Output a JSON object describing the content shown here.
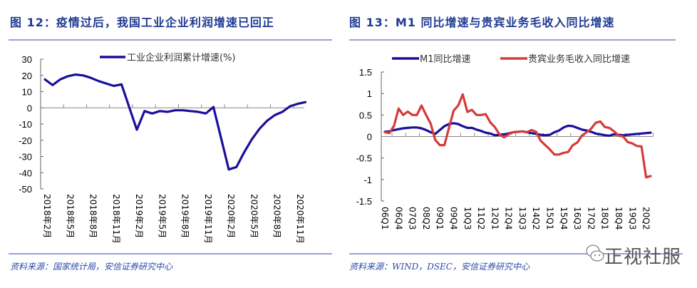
{
  "left": {
    "title": "图 12：疫情过后，我国工业企业利润增速已回正",
    "source": "资料来源：国家统计局，安信证券研究中心"
  },
  "right": {
    "title": "图 13：M1 同比增速与贵宾业务毛收入同比增速",
    "source": "资料来源：WIND，DSEC，安信证券研究中心"
  },
  "watermark": "正视社服",
  "colors": {
    "blue": "#1a0f9a",
    "red": "#d63a3a",
    "title": "#1f3a93",
    "rule": "#9aa0d8"
  },
  "chart_data": [
    {
      "type": "line",
      "title": "图 12：疫情过后，我国工业企业利润增速已回正",
      "ylim": [
        -50,
        30
      ],
      "yticks": [
        "30",
        "20",
        "10",
        "0",
        "-10",
        "-20",
        "-30",
        "-40",
        "-50"
      ],
      "xtick_labels": [
        "2018年2月",
        "2018年5月",
        "2018年8月",
        "2018年11月",
        "2019年2月",
        "2019年5月",
        "2019年8月",
        "2019年11月",
        "2020年2月",
        "2020年5月",
        "2020年8月",
        "2020年11月"
      ],
      "legend": "top",
      "series": [
        {
          "name": "工业企业利润累计增速(%)",
          "color": "#1a0f9a",
          "x": [
            "2018-02",
            "2018-03",
            "2018-04",
            "2018-05",
            "2018-06",
            "2018-07",
            "2018-08",
            "2018-09",
            "2018-10",
            "2018-11",
            "2018-12",
            "2019-02",
            "2019-03",
            "2019-04",
            "2019-05",
            "2019-06",
            "2019-07",
            "2019-08",
            "2019-09",
            "2019-10",
            "2019-11",
            "2019-12",
            "2020-02",
            "2020-03",
            "2020-04",
            "2020-05",
            "2020-06",
            "2020-07",
            "2020-08",
            "2020-09",
            "2020-10",
            "2020-11",
            "2020-12"
          ],
          "values": [
            17.5,
            14.0,
            17.5,
            19.5,
            20.5,
            20.0,
            18.5,
            16.5,
            15.0,
            13.5,
            14.5,
            -13.5,
            -2.0,
            -3.5,
            -2.0,
            -2.5,
            -1.5,
            -1.5,
            -2.0,
            -2.5,
            -3.5,
            0.5,
            -38.0,
            -36.5,
            -27.5,
            -19.5,
            -13.0,
            -8.0,
            -4.5,
            -2.5,
            1.0,
            2.5,
            3.5
          ]
        }
      ]
    },
    {
      "type": "line",
      "title": "图 13：M1 同比增速与贵宾业务毛收入同比增速",
      "ylim": [
        -1.5,
        1.5
      ],
      "yticks": [
        "1.5",
        "1",
        "0.5",
        "0",
        "-0.5",
        "-1",
        "-1.5"
      ],
      "xtick_labels": [
        "06Q1",
        "06Q4",
        "07Q3",
        "08Q2",
        "09Q1",
        "09Q4",
        "10Q3",
        "11Q2",
        "12Q1",
        "12Q4",
        "13Q3",
        "14Q2",
        "15Q1",
        "15Q4",
        "16Q3",
        "17Q2",
        "18Q1",
        "18Q4",
        "19Q3",
        "20Q2"
      ],
      "legend": "top",
      "series": [
        {
          "name": "M1同比增速",
          "color": "#1a0f9a",
          "values": [
            0.11,
            0.12,
            0.15,
            0.17,
            0.19,
            0.2,
            0.21,
            0.21,
            0.19,
            0.15,
            0.1,
            0.06,
            0.15,
            0.24,
            0.29,
            0.31,
            0.29,
            0.24,
            0.2,
            0.2,
            0.16,
            0.13,
            0.09,
            0.07,
            0.03,
            0.04,
            0.05,
            0.07,
            0.1,
            0.11,
            0.12,
            0.1,
            0.08,
            0.06,
            0.04,
            0.03,
            0.04,
            0.1,
            0.14,
            0.21,
            0.25,
            0.24,
            0.2,
            0.16,
            0.14,
            0.11,
            0.07,
            0.05,
            0.03,
            0.02,
            0.05,
            0.04,
            0.03,
            0.04,
            0.05,
            0.06,
            0.07,
            0.08,
            0.09
          ]
        },
        {
          "name": "贵宾业务毛收入同比增速",
          "color": "#d63a3a",
          "values": [
            0.1,
            0.08,
            0.25,
            0.65,
            0.5,
            0.58,
            0.5,
            0.5,
            0.72,
            0.5,
            0.3,
            -0.08,
            -0.2,
            -0.2,
            0.2,
            0.6,
            0.72,
            0.98,
            0.57,
            0.62,
            0.5,
            0.5,
            0.52,
            0.33,
            0.22,
            0.05,
            -0.02,
            0.05,
            0.1,
            0.11,
            0.12,
            0.1,
            0.15,
            0.11,
            -0.1,
            -0.2,
            -0.3,
            -0.42,
            -0.42,
            -0.38,
            -0.36,
            -0.2,
            -0.14,
            0.02,
            0.1,
            0.18,
            0.32,
            0.35,
            0.22,
            0.2,
            0.12,
            0.02,
            0.0,
            -0.13,
            -0.16,
            -0.22,
            -0.23,
            -0.95,
            -0.92
          ]
        }
      ]
    }
  ]
}
